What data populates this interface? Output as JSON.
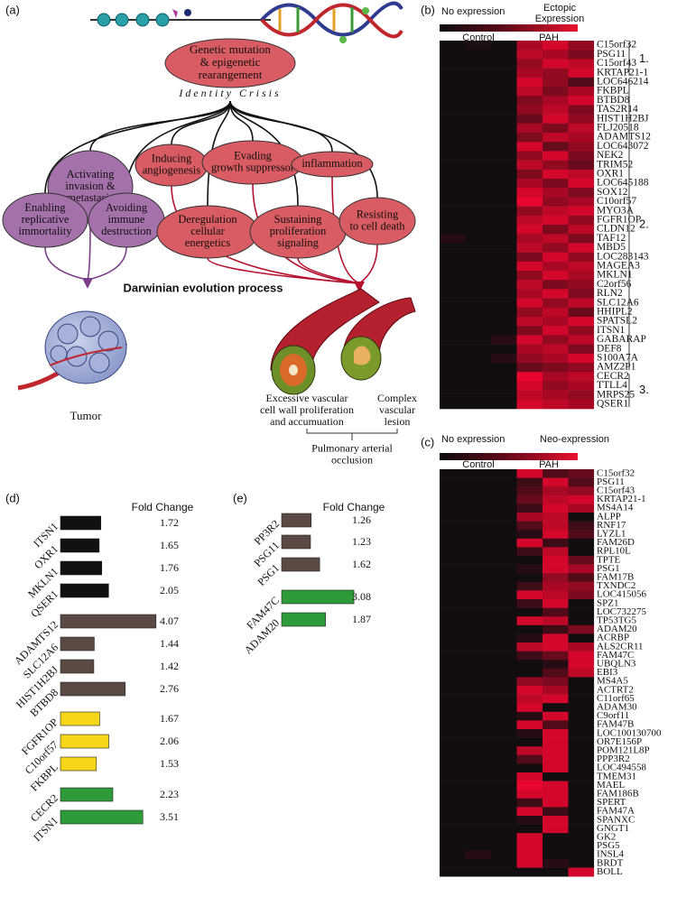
{
  "panel_labels": [
    "(a)",
    "(b)",
    "(c)",
    "(d)",
    "(e)"
  ],
  "diagram": {
    "origin": {
      "lines": [
        "Genetic mutation",
        "& epigenetic",
        "rearangement"
      ]
    },
    "subtitle": "Identity Crisis",
    "hallmarks": [
      {
        "lines": [
          "Activating",
          "invasion &",
          "metastasis"
        ]
      },
      {
        "lines": [
          "Inducing",
          "angiogenesis"
        ]
      },
      {
        "lines": [
          "Evading",
          "growth suppressor"
        ]
      },
      {
        "lines": [
          "inflammation"
        ]
      },
      {
        "lines": [
          "Enabling",
          "replicative",
          "immortality"
        ]
      },
      {
        "lines": [
          "Avoiding",
          "immune",
          "destruction"
        ]
      },
      {
        "lines": [
          "Deregulation",
          "cellular",
          "energetics"
        ]
      },
      {
        "lines": [
          "Sustaining",
          "proliferation",
          "signaling"
        ]
      },
      {
        "lines": [
          "Resisting",
          "to cell death"
        ]
      }
    ],
    "process": "Darwinian evolution process",
    "tumor": "Tumor",
    "proliferation": {
      "lines": [
        "Excessive vascular",
        "cell wall proliferation",
        "and accumuation"
      ]
    },
    "lesion": {
      "lines": [
        "Complex",
        "vascular",
        "lesion"
      ]
    },
    "outcome": {
      "lines": [
        "Pulmonary arterial",
        "occlusion"
      ]
    }
  },
  "heatmap_b": {
    "legend_low": "No expression",
    "legend_high": {
      "lines": [
        "Ectopic",
        "Expression"
      ]
    },
    "columns": [
      "Control",
      "PAH"
    ],
    "groups": [
      {
        "label": "1.",
        "genes": [
          "C15orf32",
          "PSG11",
          "C15orf43",
          "KRTAP21-1"
        ],
        "values": [
          [
            0,
            0.05,
            0,
            0.7,
            0.9,
            0.6
          ],
          [
            0,
            0,
            0,
            0.8,
            0.7,
            0.5
          ],
          [
            0,
            0,
            0,
            0.6,
            0.9,
            0.8
          ],
          [
            0,
            0,
            0,
            0.7,
            0.6,
            0.9
          ]
        ]
      },
      {
        "label": "2.",
        "genes": [
          "LOC646214",
          "FKBPL",
          "BTBD8",
          "TAS2R14",
          "HIST1H2BJ",
          "FLJ20518",
          "ADAMTS12",
          "LOC643072",
          "NEK2",
          "TRIM52",
          "OXR1",
          "LOC645188",
          "SOX12",
          "C10orf57",
          "MYO3A",
          "FGFR1OP",
          "CLDN12",
          "TAF12",
          "MBD5",
          "LOC283143",
          "MAGEA3",
          "MKLN1",
          "C2orf56",
          "RLN2",
          "SLC12A6",
          "HHIPL2",
          "SPATSL2",
          "ITSN1",
          "GABARAP",
          "DEF8",
          "S100A7A",
          "AMZ2P1"
        ],
        "values": [
          [
            0,
            0,
            0,
            0.9,
            0.6,
            0.3
          ],
          [
            0,
            0,
            0,
            0.8,
            0.5,
            0.7
          ],
          [
            0,
            0,
            0,
            0.5,
            0.7,
            0.9
          ],
          [
            0,
            0,
            0,
            0.6,
            0.8,
            0.5
          ],
          [
            0,
            0,
            0,
            0.4,
            0.9,
            0.6
          ],
          [
            0,
            0,
            0,
            0.7,
            0.5,
            0.8
          ],
          [
            0,
            0,
            0,
            0.5,
            0.8,
            0.7
          ],
          [
            0,
            0,
            0,
            0.9,
            0.4,
            0.6
          ],
          [
            0,
            0,
            0,
            0.6,
            0.9,
            0.5
          ],
          [
            0,
            0,
            0,
            0.8,
            0.6,
            0.4
          ],
          [
            0,
            0,
            0,
            0.5,
            0.9,
            0.8
          ],
          [
            0,
            0,
            0,
            0.7,
            0.5,
            0.9
          ],
          [
            0,
            0,
            0,
            0.9,
            0.7,
            0.5
          ],
          [
            0,
            0,
            0,
            1,
            0.6,
            0.7
          ],
          [
            0,
            0,
            0,
            0.6,
            0.8,
            0.9
          ],
          [
            0,
            0,
            0,
            0.8,
            0.9,
            0.6
          ],
          [
            0,
            0,
            0,
            0.9,
            0.5,
            0.8
          ],
          [
            0.1,
            0,
            0,
            0.7,
            0.8,
            0.5
          ],
          [
            0,
            0,
            0,
            0.8,
            0.6,
            0.9
          ],
          [
            0,
            0,
            0,
            0.5,
            0.9,
            0.6
          ],
          [
            0,
            0,
            0,
            0.9,
            0.7,
            0.8
          ],
          [
            0,
            0,
            0,
            0.6,
            0.9,
            0.7
          ],
          [
            0,
            0,
            0,
            0.8,
            0.5,
            0.6
          ],
          [
            0,
            0,
            0,
            0.7,
            0.9,
            0.5
          ],
          [
            0,
            0,
            0,
            0.9,
            0.6,
            0.8
          ],
          [
            0,
            0,
            0,
            0.6,
            0.8,
            0.4
          ],
          [
            0,
            0,
            0,
            0.8,
            0.7,
            0.9
          ],
          [
            0,
            0,
            0,
            0.5,
            0.9,
            0.6
          ],
          [
            0,
            0,
            0.1,
            0.9,
            0.6,
            0.8
          ],
          [
            0,
            0,
            0,
            0.7,
            0.8,
            0.5
          ],
          [
            0,
            0,
            0.1,
            0.6,
            0.7,
            0.9
          ],
          [
            0,
            0,
            0,
            0.4,
            0.5,
            0.6
          ]
        ]
      },
      {
        "label": "3.",
        "genes": [
          "CECR2",
          "TTLL4",
          "MRPS25",
          "QSER1"
        ],
        "values": [
          [
            0,
            0,
            0,
            1,
            0.7,
            0.8
          ],
          [
            0,
            0,
            0,
            0.9,
            0.6,
            0.7
          ],
          [
            0,
            0,
            0,
            0.8,
            0.7,
            0.6
          ],
          [
            0,
            0,
            0,
            0.9,
            0.8,
            0.7
          ]
        ]
      }
    ]
  },
  "heatmap_c": {
    "legend_low": "No expression",
    "legend_high": "Neo-expression",
    "columns": [
      "Control",
      "PAH"
    ],
    "genes": [
      "C15orf32",
      "PSG11",
      "C15orf43",
      "KRTAP21-1",
      "MS4A14",
      "ALPP",
      "RNF17",
      "LYZL1",
      "FAM26D",
      "RPL10L",
      "TPTE",
      "PSG1",
      "FAM17B",
      "TXNDC2",
      "LOC415056",
      "SPZ1",
      "LOC732275",
      "TP53TG5",
      "ADAM20",
      "ACRBP",
      "ALS2CR11",
      "FAM47C",
      "UBQLN3",
      "EBI3",
      "MS4A5",
      "ACTRT2",
      "C11orf65",
      "ADAM30",
      "C9orf11",
      "FAM47B",
      "LOC100130700",
      "OR7E156P",
      "POM121L8P",
      "PPP3R2",
      "LOC494558",
      "TMEM31",
      "MAEL",
      "FAM186B",
      "SPERT",
      "FAM47A",
      "SPANXC",
      "GNGT1",
      "GK2",
      "PSG5",
      "INSL4",
      "BRDT",
      "BOLL"
    ],
    "values": [
      [
        0,
        0,
        0,
        0.9,
        0.3,
        0.4
      ],
      [
        0,
        0,
        0,
        0.2,
        0.9,
        0.3
      ],
      [
        0,
        0,
        0,
        0.3,
        0.7,
        0.6
      ],
      [
        0,
        0,
        0,
        0.4,
        0.8,
        0.9
      ],
      [
        0,
        0,
        0,
        0.2,
        0.9,
        0.7
      ],
      [
        0,
        0,
        0,
        0.7,
        0.8,
        0
      ],
      [
        0,
        0,
        0,
        0.3,
        0.8,
        0.2
      ],
      [
        0,
        0,
        0,
        0.1,
        0.9,
        0.3
      ],
      [
        0,
        0,
        0,
        0.9,
        0.2,
        0
      ],
      [
        0,
        0,
        0,
        0.2,
        0.8,
        0
      ],
      [
        0,
        0,
        0,
        0,
        0.9,
        0.4
      ],
      [
        0,
        0,
        0,
        0.1,
        0.9,
        0.7
      ],
      [
        0,
        0,
        0,
        0,
        0.6,
        0.3
      ],
      [
        0,
        0,
        0,
        0.2,
        0.7,
        0.6
      ],
      [
        0,
        0,
        0,
        0.9,
        0.8,
        0.5
      ],
      [
        0,
        0,
        0,
        0.2,
        0.9,
        0
      ],
      [
        0,
        0,
        0,
        0,
        0.3,
        0
      ],
      [
        0,
        0,
        0,
        0.9,
        0.8,
        0
      ],
      [
        0,
        0,
        0,
        0,
        0.2,
        0.5
      ],
      [
        0,
        0,
        0,
        0.1,
        0.9,
        0
      ],
      [
        0,
        0,
        0,
        0.8,
        0.9,
        0.7
      ],
      [
        0,
        0,
        0,
        0.2,
        0.4,
        0.9
      ],
      [
        0,
        0,
        0,
        0,
        0.1,
        0.9
      ],
      [
        0,
        0,
        0,
        0,
        0.3,
        0.8
      ],
      [
        0,
        0,
        0,
        0.6,
        0.5,
        0
      ],
      [
        0,
        0,
        0,
        0.9,
        0.7,
        0
      ],
      [
        0,
        0,
        0,
        0.8,
        0.9,
        0
      ],
      [
        0,
        0,
        0,
        0.9,
        0,
        0
      ],
      [
        0,
        0,
        0,
        0.1,
        0.9,
        0
      ],
      [
        0,
        0,
        0,
        0.9,
        0.3,
        0
      ],
      [
        0,
        0,
        0,
        0.1,
        0.9,
        0
      ],
      [
        0,
        0,
        0,
        0,
        0.9,
        0
      ],
      [
        0,
        0,
        0,
        0.8,
        0.9,
        0
      ],
      [
        0,
        0,
        0,
        0.3,
        0.9,
        0
      ],
      [
        0,
        0,
        0,
        0,
        0.9,
        0
      ],
      [
        0,
        0,
        0,
        0.9,
        0,
        0
      ],
      [
        0,
        0,
        0,
        1,
        0.9,
        0
      ],
      [
        0,
        0,
        0,
        0.9,
        0.9,
        0
      ],
      [
        0,
        0,
        0,
        0.2,
        0.9,
        0
      ],
      [
        0,
        0,
        0,
        0.9,
        0.2,
        0
      ],
      [
        0,
        0,
        0,
        0.1,
        0.9,
        0
      ],
      [
        0,
        0,
        0,
        0,
        0.9,
        0
      ],
      [
        0,
        0,
        0,
        0.9,
        0,
        0
      ],
      [
        0,
        0,
        0,
        0.9,
        0,
        0
      ],
      [
        0,
        0.1,
        0,
        0.9,
        0,
        0
      ],
      [
        0,
        0,
        0,
        0.9,
        0.1,
        0
      ],
      [
        0,
        0,
        0,
        0,
        0,
        0.9
      ]
    ]
  },
  "bar_d": {
    "title": "Fold Change",
    "bars": [
      {
        "label": "ITSN1",
        "value": 1.72,
        "color": "#111111"
      },
      {
        "label": "OXR1",
        "value": 1.65,
        "color": "#111111"
      },
      {
        "label": "MKLN1",
        "value": 1.76,
        "color": "#111111"
      },
      {
        "label": "QSER1",
        "value": 2.05,
        "color": "#111111"
      },
      {
        "label": "ADAMTS12",
        "value": 4.07,
        "color": "#5b4a44"
      },
      {
        "label": "SLC12A6",
        "value": 1.44,
        "color": "#5b4a44"
      },
      {
        "label": "HIST1H2BJ",
        "value": 1.42,
        "color": "#5b4a44"
      },
      {
        "label": "BTBD8",
        "value": 2.76,
        "color": "#5b4a44"
      },
      {
        "label": "FGFR1OP",
        "value": 1.67,
        "color": "#f6d619"
      },
      {
        "label": "C10orf57",
        "value": 2.06,
        "color": "#f6d619"
      },
      {
        "label": "FKBPL",
        "value": 1.53,
        "color": "#f6d619"
      },
      {
        "label": "CECR2",
        "value": 2.23,
        "color": "#2e9b3a"
      },
      {
        "label": "ITSN1",
        "value": 3.51,
        "color": "#2e9b3a"
      }
    ]
  },
  "bar_e": {
    "title": "Fold Change",
    "bars": [
      {
        "label": "PP3R2",
        "value": 1.26,
        "color": "#5b4a44"
      },
      {
        "label": "PSG11",
        "value": 1.23,
        "color": "#5b4a44"
      },
      {
        "label": "PSG1",
        "value": 1.62,
        "color": "#5b4a44"
      },
      {
        "label": "FAM47C",
        "value": 3.08,
        "color": "#2e9b3a"
      },
      {
        "label": "ADAM20",
        "value": 1.87,
        "color": "#2e9b3a"
      }
    ]
  }
}
